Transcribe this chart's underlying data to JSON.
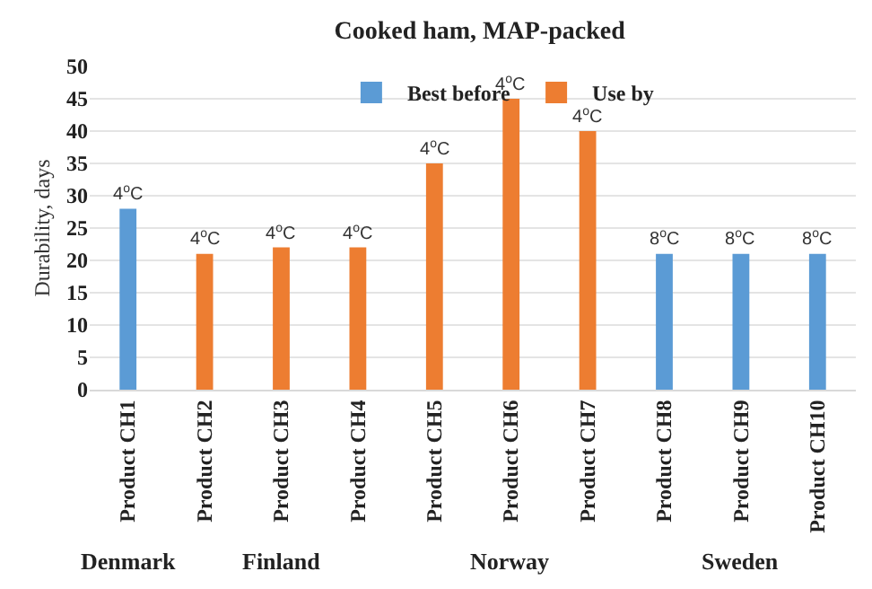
{
  "chart_data": {
    "type": "bar",
    "title": "Cooked ham, MAP-packed",
    "ylabel": "Durability, days",
    "categories": [
      "Product CH1",
      "Product CH2",
      "Product CH3",
      "Product CH4",
      "Product CH5",
      "Product CH6",
      "Product CH7",
      "Product CH8",
      "Product CH9",
      "Product CH10"
    ],
    "series": [
      {
        "name": "Best before",
        "color": "#5b9bd5",
        "values": [
          28,
          null,
          null,
          null,
          null,
          null,
          null,
          21,
          21,
          21
        ]
      },
      {
        "name": "Use by",
        "color": "#ed7d31",
        "values": [
          null,
          21,
          22,
          22,
          35,
          45,
          40,
          null,
          null,
          null
        ]
      }
    ],
    "annotations": [
      {
        "text": "4$^{o}$C",
        "x": "Product CH1",
        "y": 28
      },
      {
        "text": "4$^{o}$C",
        "x": "Product CH2",
        "y": 21
      },
      {
        "text": "4$^{o}$C",
        "x": "Product CH3",
        "y": 22
      },
      {
        "text": "4$^{o}$C",
        "x": "Product CH4",
        "y": 22
      },
      {
        "text": "4$^{o}$C",
        "x": "Product CH5",
        "y": 35
      },
      {
        "text": "4$^{o}$C",
        "x": "Product CH6",
        "y": 45
      },
      {
        "text": "4$^{o}$C",
        "x": "Product CH7",
        "y": 40
      },
      {
        "text": "8$^{o}$C",
        "x": "Product CH8",
        "y": 21
      },
      {
        "text": "8$^{o}$C",
        "x": "Product CH9",
        "y": 21
      },
      {
        "text": "8$^{o}$C",
        "x": "Product CH10",
        "y": 21
      },
      "Denmark",
      "Finland",
      "Norway",
      "Sweden"
    ],
    "ylim": [
      0,
      50
    ],
    "yticks": [
      0,
      5,
      10,
      15,
      20,
      25,
      30,
      35,
      40,
      45,
      50
    ],
    "grid": "y",
    "legend": "top"
  }
}
